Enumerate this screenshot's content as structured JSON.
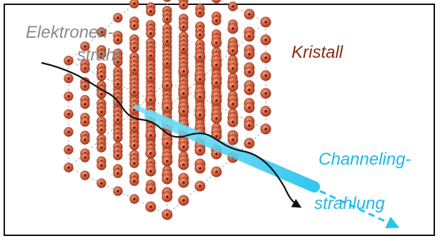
{
  "labels": {
    "electron_line1": "Elektronen-",
    "electron_line2": "strahl",
    "crystal": "Kristall",
    "channeling_line1": "Channeling-",
    "channeling_line2": "strahlung"
  },
  "colors": {
    "electron_label": "#8a8a8a",
    "crystal_label": "#8b2a10",
    "channeling_label": "#1fb8e8",
    "atom_fill": "#c9573a",
    "atom_fill_light": "#e48a6c",
    "atom_core": "#5a1a0a",
    "lattice_line": "#9a9a9a",
    "beam_path": "#111111",
    "radiation_beam": "#27c4ee"
  },
  "icons": {
    "electron_arrow": "arrow-right",
    "radiation_arrow": "dashed-arrow-right"
  }
}
